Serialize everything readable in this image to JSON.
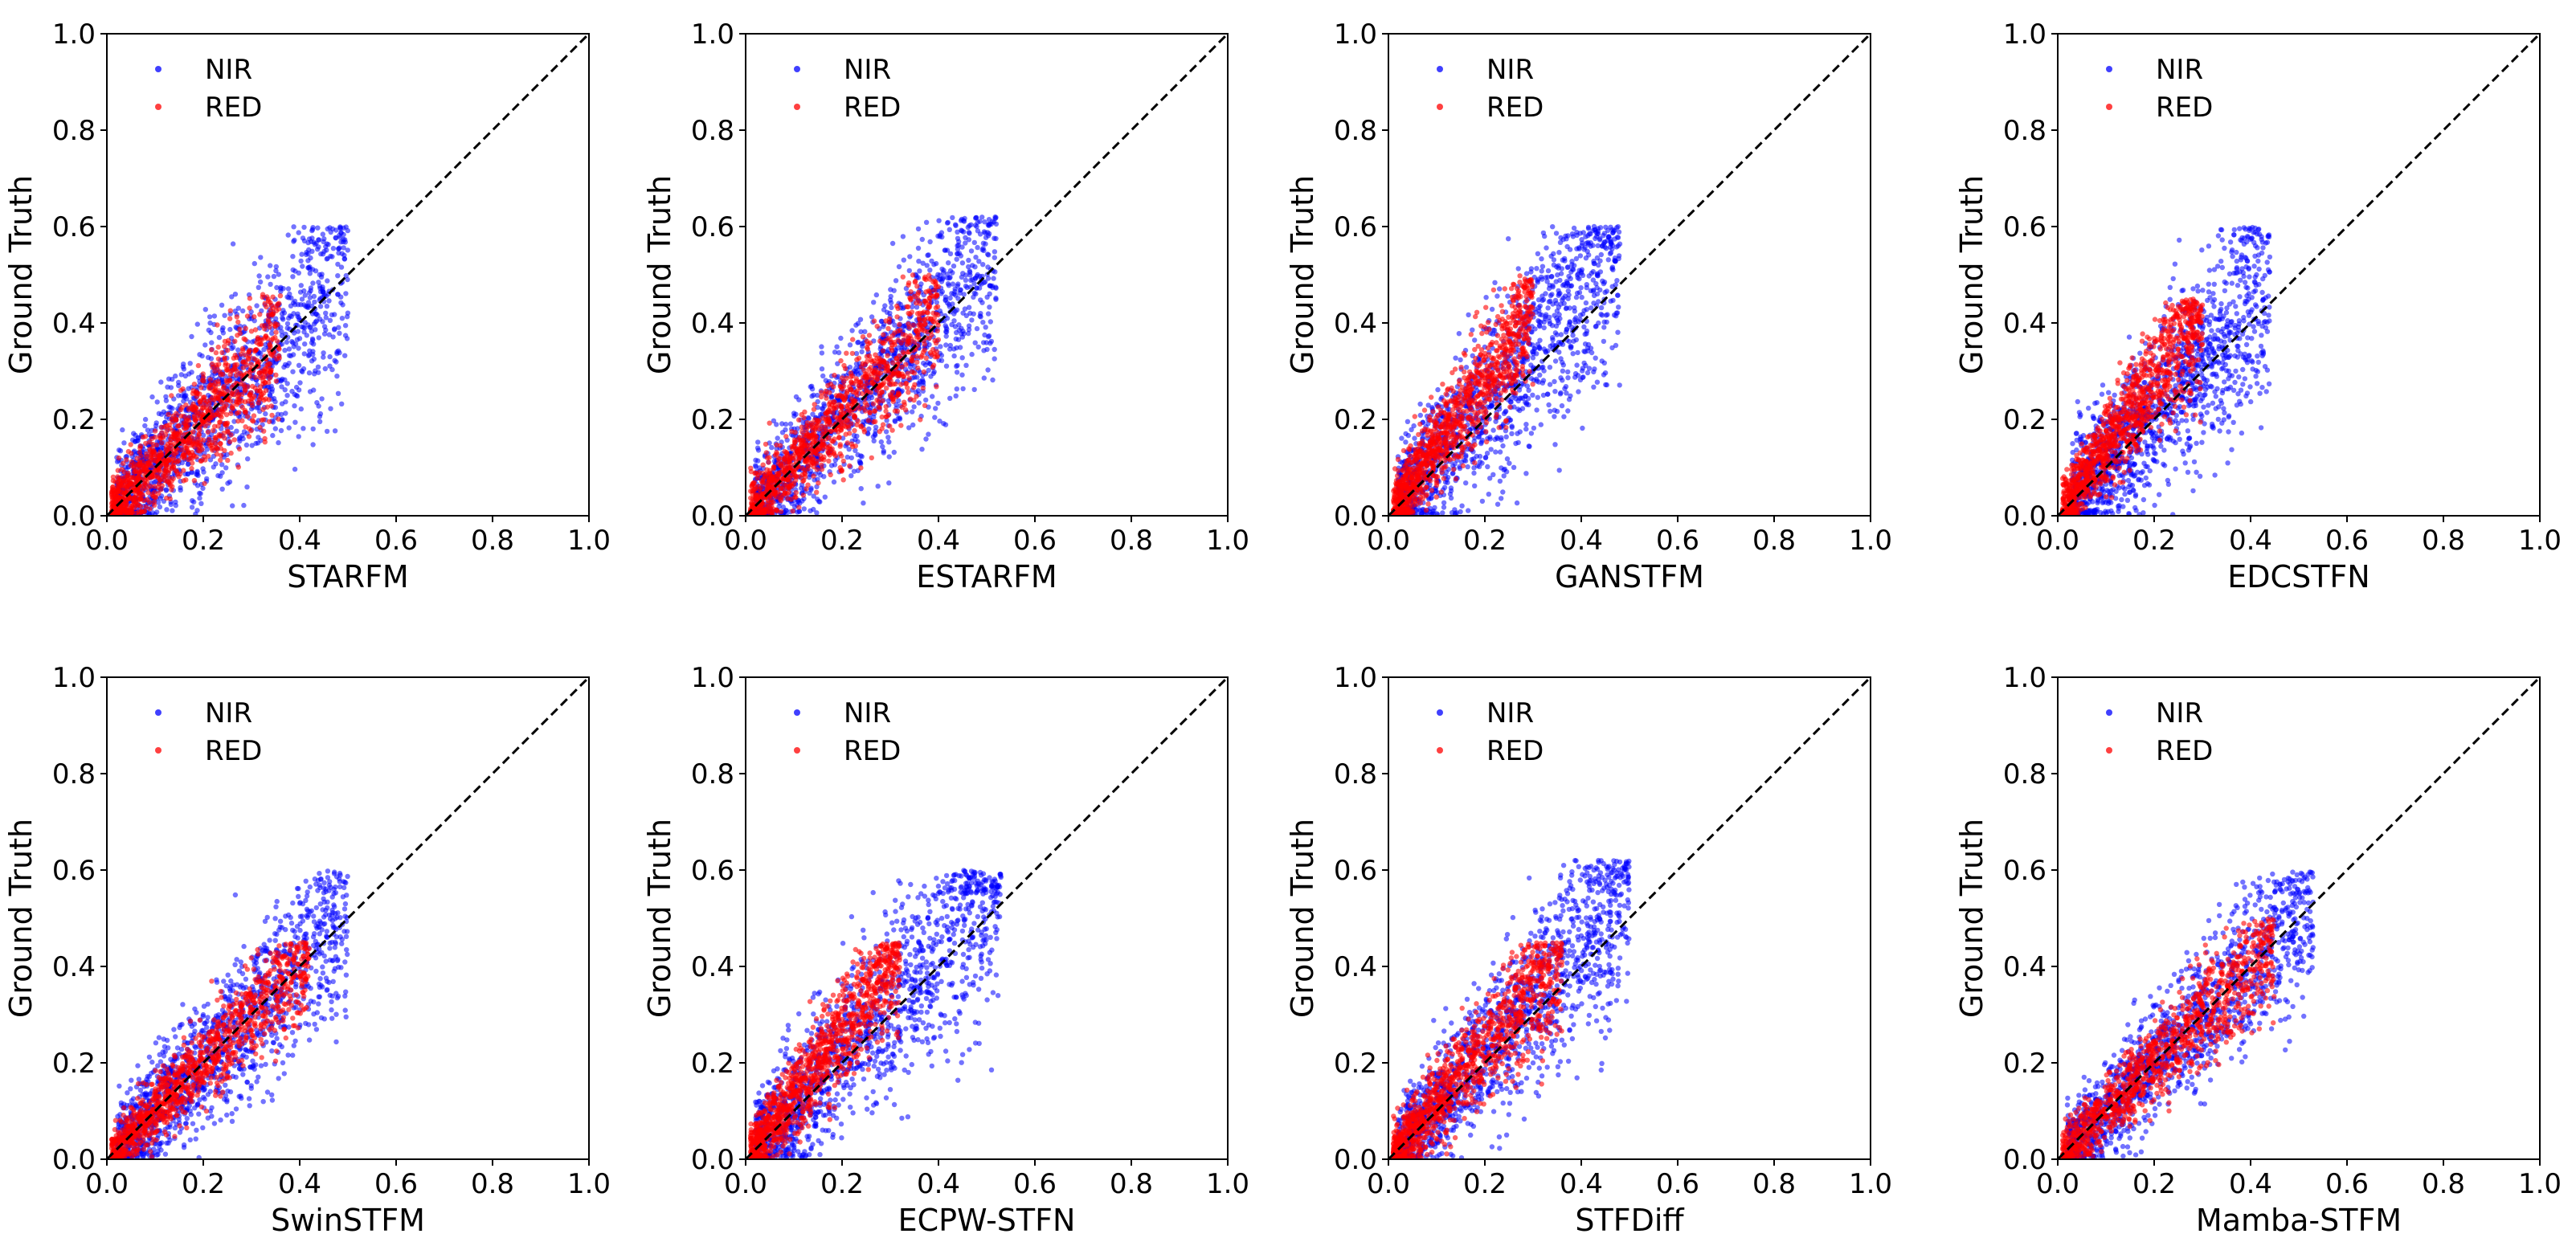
{
  "figure": {
    "ylabel": "Ground Truth",
    "legend_position": "top-left",
    "reference_line": "y = x (black dashed)",
    "colors": {
      "nir": "#0000ff",
      "red": "#ff0000",
      "axis": "#000000",
      "background": "#ffffff"
    }
  },
  "chart_data": [
    {
      "type": "scatter",
      "xlabel": "STARFM",
      "ylabel": "Ground Truth",
      "xlim": [
        0,
        1
      ],
      "ylim": [
        0,
        1
      ],
      "ticks": [
        "0.0",
        "0.2",
        "0.4",
        "0.6",
        "0.8",
        "1.0"
      ],
      "legend": [
        "NIR",
        "RED"
      ],
      "series": [
        {
          "name": "NIR",
          "color": "#0000ff",
          "slope": 1.0,
          "spread": 0.09,
          "x_range": [
            0.02,
            0.5
          ],
          "y_max": 0.6
        },
        {
          "name": "RED",
          "color": "#ff0000",
          "slope": 1.0,
          "spread": 0.05,
          "x_range": [
            0.01,
            0.36
          ],
          "y_max": 0.46
        }
      ]
    },
    {
      "type": "scatter",
      "xlabel": "ESTARFM",
      "ylabel": "Ground Truth",
      "xlim": [
        0,
        1
      ],
      "ylim": [
        0,
        1
      ],
      "ticks": [
        "0.0",
        "0.2",
        "0.4",
        "0.6",
        "0.8",
        "1.0"
      ],
      "legend": [
        "NIR",
        "RED"
      ],
      "series": [
        {
          "name": "NIR",
          "color": "#0000ff",
          "slope": 1.05,
          "spread": 0.08,
          "x_range": [
            0.02,
            0.52
          ],
          "y_max": 0.62
        },
        {
          "name": "RED",
          "color": "#ff0000",
          "slope": 1.05,
          "spread": 0.05,
          "x_range": [
            0.01,
            0.4
          ],
          "y_max": 0.5
        }
      ]
    },
    {
      "type": "scatter",
      "xlabel": "GANSTFM",
      "ylabel": "Ground Truth",
      "xlim": [
        0,
        1
      ],
      "ylim": [
        0,
        1
      ],
      "ticks": [
        "0.0",
        "0.2",
        "0.4",
        "0.6",
        "0.8",
        "1.0"
      ],
      "legend": [
        "NIR",
        "RED"
      ],
      "series": [
        {
          "name": "NIR",
          "color": "#0000ff",
          "slope": 1.15,
          "spread": 0.09,
          "x_range": [
            0.02,
            0.48
          ],
          "y_max": 0.6
        },
        {
          "name": "RED",
          "color": "#ff0000",
          "slope": 1.45,
          "spread": 0.05,
          "x_range": [
            0.01,
            0.3
          ],
          "y_max": 0.5
        }
      ]
    },
    {
      "type": "scatter",
      "xlabel": "EDCSTFN",
      "ylabel": "Ground Truth",
      "xlim": [
        0,
        1
      ],
      "ylim": [
        0,
        1
      ],
      "ticks": [
        "0.0",
        "0.2",
        "0.4",
        "0.6",
        "0.8",
        "1.0"
      ],
      "legend": [
        "NIR",
        "RED"
      ],
      "series": [
        {
          "name": "NIR",
          "color": "#0000ff",
          "slope": 1.1,
          "spread": 0.09,
          "x_range": [
            0.03,
            0.44
          ],
          "y_max": 0.6
        },
        {
          "name": "RED",
          "color": "#ff0000",
          "slope": 1.4,
          "spread": 0.05,
          "x_range": [
            0.01,
            0.3
          ],
          "y_max": 0.45
        }
      ]
    },
    {
      "type": "scatter",
      "xlabel": "SwinSTFM",
      "ylabel": "Ground Truth",
      "xlim": [
        0,
        1
      ],
      "ylim": [
        0,
        1
      ],
      "ticks": [
        "0.0",
        "0.2",
        "0.4",
        "0.6",
        "0.8",
        "1.0"
      ],
      "legend": [
        "NIR",
        "RED"
      ],
      "series": [
        {
          "name": "NIR",
          "color": "#0000ff",
          "slope": 1.0,
          "spread": 0.07,
          "x_range": [
            0.02,
            0.5
          ],
          "y_max": 0.6
        },
        {
          "name": "RED",
          "color": "#ff0000",
          "slope": 1.0,
          "spread": 0.04,
          "x_range": [
            0.01,
            0.42
          ],
          "y_max": 0.45
        }
      ]
    },
    {
      "type": "scatter",
      "xlabel": "ECPW-STFN",
      "ylabel": "Ground Truth",
      "xlim": [
        0,
        1
      ],
      "ylim": [
        0,
        1
      ],
      "ticks": [
        "0.0",
        "0.2",
        "0.4",
        "0.6",
        "0.8",
        "1.0"
      ],
      "legend": [
        "NIR",
        "RED"
      ],
      "series": [
        {
          "name": "NIR",
          "color": "#0000ff",
          "slope": 1.05,
          "spread": 0.09,
          "x_range": [
            0.02,
            0.53
          ],
          "y_max": 0.6
        },
        {
          "name": "RED",
          "color": "#ff0000",
          "slope": 1.35,
          "spread": 0.05,
          "x_range": [
            0.01,
            0.32
          ],
          "y_max": 0.45
        }
      ]
    },
    {
      "type": "scatter",
      "xlabel": "STFDiff",
      "ylabel": "Ground Truth",
      "xlim": [
        0,
        1
      ],
      "ylim": [
        0,
        1
      ],
      "ticks": [
        "0.0",
        "0.2",
        "0.4",
        "0.6",
        "0.8",
        "1.0"
      ],
      "legend": [
        "NIR",
        "RED"
      ],
      "series": [
        {
          "name": "NIR",
          "color": "#0000ff",
          "slope": 1.1,
          "spread": 0.08,
          "x_range": [
            0.02,
            0.5
          ],
          "y_max": 0.62
        },
        {
          "name": "RED",
          "color": "#ff0000",
          "slope": 1.15,
          "spread": 0.05,
          "x_range": [
            0.01,
            0.36
          ],
          "y_max": 0.45
        }
      ]
    },
    {
      "type": "scatter",
      "xlabel": "Mamba-STFM",
      "ylabel": "Ground Truth",
      "xlim": [
        0,
        1
      ],
      "ylim": [
        0,
        1
      ],
      "ticks": [
        "0.0",
        "0.2",
        "0.4",
        "0.6",
        "0.8",
        "1.0"
      ],
      "legend": [
        "NIR",
        "RED"
      ],
      "series": [
        {
          "name": "NIR",
          "color": "#0000ff",
          "slope": 1.0,
          "spread": 0.07,
          "x_range": [
            0.02,
            0.53
          ],
          "y_max": 0.6
        },
        {
          "name": "RED",
          "color": "#ff0000",
          "slope": 1.0,
          "spread": 0.045,
          "x_range": [
            0.01,
            0.45
          ],
          "y_max": 0.5
        }
      ]
    }
  ]
}
